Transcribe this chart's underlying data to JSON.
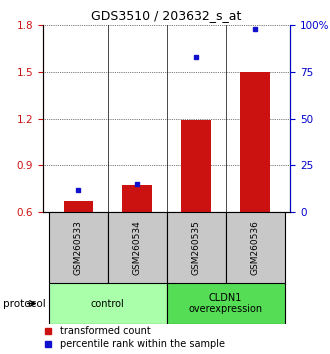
{
  "title": "GDS3510 / 203632_s_at",
  "samples": [
    "GSM260533",
    "GSM260534",
    "GSM260535",
    "GSM260536"
  ],
  "red_values": [
    0.675,
    0.775,
    1.19,
    1.5
  ],
  "blue_values": [
    12,
    15,
    83,
    98
  ],
  "red_baseline": 0.6,
  "ylim_left": [
    0.6,
    1.8
  ],
  "ylim_right": [
    0,
    100
  ],
  "yticks_left": [
    0.6,
    0.9,
    1.2,
    1.5,
    1.8
  ],
  "yticks_right": [
    0,
    25,
    50,
    75,
    100
  ],
  "ytick_labels_right": [
    "0",
    "25",
    "50",
    "75",
    "100%"
  ],
  "groups": [
    {
      "label": "control",
      "samples": [
        0,
        1
      ],
      "color": "#aaffaa"
    },
    {
      "label": "CLDN1\noverexpression",
      "samples": [
        2,
        3
      ],
      "color": "#55dd55"
    }
  ],
  "group_label_prefix": "protocol",
  "bar_color": "#cc1111",
  "dot_color": "#1111cc",
  "bar_width": 0.5,
  "tick_label_color_left": "#cc1111",
  "tick_label_color_right": "#0000cc",
  "legend_red": "transformed count",
  "legend_blue": "percentile rank within the sample",
  "sample_cell_bg": "#c8c8c8",
  "figure_width": 3.3,
  "figure_height": 3.54,
  "dpi": 100
}
